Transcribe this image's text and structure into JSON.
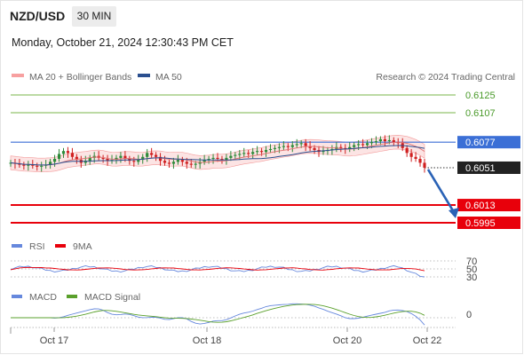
{
  "header": {
    "symbol": "NZD/USD",
    "timeframe": "30 MIN",
    "timestamp": "Monday, October 21, 2024 12:30:43 PM CET"
  },
  "legend": {
    "ma20_bb": "MA 20 + Bollinger Bands",
    "ma50": "MA 50",
    "credit": "Research © 2024 Trading Central",
    "rsi": "RSI",
    "rsi_ma": "9MA",
    "macd": "MACD",
    "macd_signal": "MACD Signal"
  },
  "colors": {
    "resistance": "#7ab648",
    "pivot": "#3b6fd6",
    "support": "#e8000b",
    "current": "#222222",
    "arrow": "#2a62b6",
    "bollinger": "#f7b3b3",
    "ma20": "#e07070",
    "ma50": "#2b4f8f",
    "bull": "#2e8b3a",
    "bear": "#d02020",
    "rsi": "#6688dd",
    "rsi_ma": "#e8000b",
    "macd": "#6688dd",
    "macd_signal": "#5aa02c"
  },
  "chart_data": {
    "type": "candlestick",
    "x_ticks": [
      "Oct 17",
      "Oct 18",
      "Oct 20",
      "Oct 22"
    ],
    "price_range": [
      0.599,
      0.6135
    ],
    "levels": [
      {
        "label": "0.6125",
        "value": 0.6125,
        "kind": "resistance"
      },
      {
        "label": "0.6107",
        "value": 0.6107,
        "kind": "resistance"
      },
      {
        "label": "0.6077",
        "value": 0.6077,
        "kind": "pivot"
      },
      {
        "label": "0.6051",
        "value": 0.6051,
        "kind": "current"
      },
      {
        "label": "0.6013",
        "value": 0.6013,
        "kind": "support"
      },
      {
        "label": "0.5995",
        "value": 0.5995,
        "kind": "support"
      }
    ],
    "forecast_arrow": {
      "from": 0.6051,
      "to": 0.5995
    },
    "close": [
      0.6056,
      0.6055,
      0.6054,
      0.6053,
      0.6054,
      0.6053,
      0.6052,
      0.6053,
      0.6054,
      0.6057,
      0.606,
      0.6065,
      0.6068,
      0.6066,
      0.6062,
      0.6059,
      0.6056,
      0.6058,
      0.6061,
      0.6063,
      0.6061,
      0.606,
      0.6058,
      0.6059,
      0.6061,
      0.6063,
      0.606,
      0.6058,
      0.6057,
      0.6059,
      0.6062,
      0.6066,
      0.6064,
      0.6062,
      0.6058,
      0.6056,
      0.6055,
      0.6057,
      0.6059,
      0.6057,
      0.6055,
      0.6054,
      0.6055,
      0.6057,
      0.6059,
      0.606,
      0.6061,
      0.606,
      0.6059,
      0.6061,
      0.6063,
      0.6064,
      0.6065,
      0.6066,
      0.6065,
      0.6067,
      0.6068,
      0.6067,
      0.6069,
      0.607,
      0.6071,
      0.6072,
      0.6073,
      0.6072,
      0.6074,
      0.6075,
      0.6076,
      0.6073,
      0.6071,
      0.6069,
      0.6067,
      0.6068,
      0.6069,
      0.607,
      0.6072,
      0.6071,
      0.607,
      0.6072,
      0.6074,
      0.6075,
      0.6074,
      0.6076,
      0.6077,
      0.6078,
      0.608,
      0.6078,
      0.6079,
      0.6077,
      0.6076,
      0.6071,
      0.6066,
      0.6062,
      0.606,
      0.6056,
      0.6051
    ],
    "rsi_axis": [
      70,
      50,
      30
    ],
    "macd_axis": [
      0
    ]
  }
}
